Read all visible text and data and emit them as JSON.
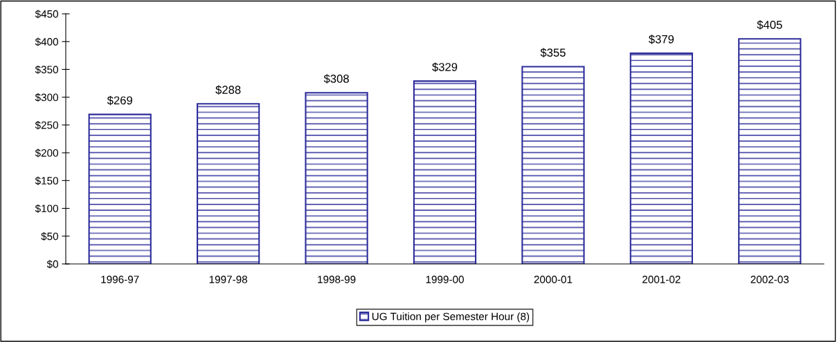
{
  "chart_data": {
    "type": "bar",
    "categories": [
      "1996-97",
      "1997-98",
      "1998-99",
      "1999-00",
      "2000-01",
      "2001-02",
      "2002-03"
    ],
    "series": [
      {
        "name": "UG Tuition per Semester Hour (8)",
        "color": "#2b2b9a",
        "values": [
          269,
          288,
          308,
          329,
          355,
          379,
          405
        ],
        "value_labels": [
          "$269",
          "$288",
          "$308",
          "$329",
          "$355",
          "$379",
          "$405"
        ]
      }
    ],
    "ylim": [
      0,
      450
    ],
    "yticks": [
      {
        "value": 0,
        "label": "$0"
      },
      {
        "value": 50,
        "label": "$50"
      },
      {
        "value": 100,
        "label": "$100"
      },
      {
        "value": 150,
        "label": "$150"
      },
      {
        "value": 200,
        "label": "$200"
      },
      {
        "value": 250,
        "label": "$250"
      },
      {
        "value": 300,
        "label": "$300"
      },
      {
        "value": 350,
        "label": "$350"
      },
      {
        "value": 400,
        "label": "$400"
      },
      {
        "value": 450,
        "label": "$450"
      }
    ],
    "grid": false,
    "legend": "bottom"
  }
}
